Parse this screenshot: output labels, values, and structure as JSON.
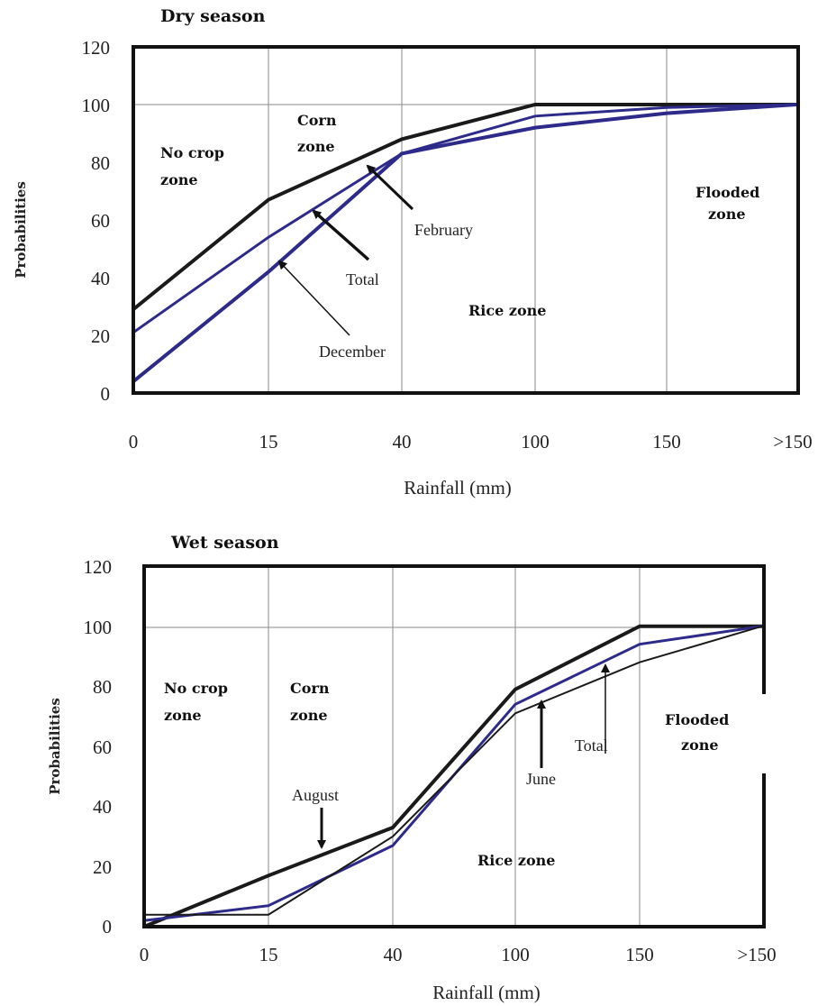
{
  "chart_data": [
    {
      "type": "line",
      "title": "Dry season",
      "xlabel": "Rainfall (mm)",
      "ylabel": "Probabilities",
      "ylim": [
        0,
        120
      ],
      "yticks": [
        0,
        20,
        40,
        60,
        80,
        100,
        120
      ],
      "categories": [
        "0",
        "15",
        "40",
        "100",
        "150",
        ">150"
      ],
      "grid": true,
      "zones": [
        "No crop zone",
        "Corn zone",
        "Rice zone",
        "Flooded zone"
      ],
      "zone_labels": {
        "nocrop": [
          "No crop",
          "zone"
        ],
        "corn": [
          "Corn",
          "zone"
        ],
        "rice": [
          "Rice zone"
        ],
        "flooded": [
          "Flooded",
          "zone"
        ]
      },
      "series": [
        {
          "name": "February",
          "color": "#1a1a1a",
          "values": [
            29,
            67,
            88,
            100,
            100,
            100
          ]
        },
        {
          "name": "Total",
          "color": "#2e2a8a",
          "values": [
            21,
            54,
            83,
            96,
            99,
            100
          ]
        },
        {
          "name": "December",
          "color": "#2e2a8a",
          "values": [
            4,
            42,
            83,
            92,
            97,
            100
          ]
        }
      ],
      "annotations": [
        "February",
        "Total",
        "December"
      ]
    },
    {
      "type": "line",
      "title": "Wet season",
      "xlabel": "Rainfall (mm)",
      "ylabel": "Probabilities",
      "ylim": [
        0,
        120
      ],
      "yticks": [
        0,
        20,
        40,
        60,
        80,
        100,
        120
      ],
      "categories": [
        "0",
        "15",
        "40",
        "100",
        "150",
        ">150"
      ],
      "grid": true,
      "zones": [
        "No crop zone",
        "Corn zone",
        "Rice zone",
        "Flooded zone"
      ],
      "zone_labels": {
        "nocrop": [
          "No crop",
          "zone"
        ],
        "corn": [
          "Corn",
          "zone"
        ],
        "rice": [
          "Rice zone"
        ],
        "flooded": [
          "Flooded",
          "zone"
        ]
      },
      "series": [
        {
          "name": "August",
          "color": "#1a1a1a",
          "values": [
            0,
            17,
            33,
            79,
            100,
            100
          ]
        },
        {
          "name": "Total",
          "color": "#2e2a8a",
          "values": [
            2,
            7,
            27,
            74,
            94,
            100
          ]
        },
        {
          "name": "June",
          "color": "#1a1a1a",
          "values": [
            4,
            4,
            30,
            71,
            88,
            100
          ]
        }
      ],
      "annotations": [
        "August",
        "June",
        "Total"
      ]
    }
  ]
}
